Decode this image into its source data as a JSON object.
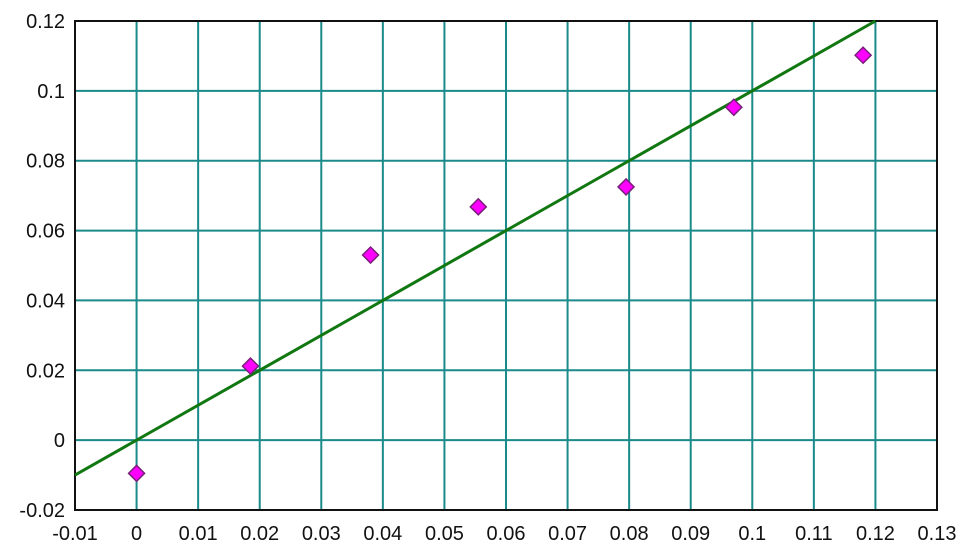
{
  "chart_data": {
    "type": "scatter",
    "title": "",
    "xlabel": "",
    "ylabel": "",
    "xlim": [
      -0.01,
      0.13
    ],
    "ylim": [
      -0.02,
      0.12
    ],
    "x_ticks": [
      -0.01,
      0,
      0.01,
      0.02,
      0.03,
      0.04,
      0.05,
      0.06,
      0.07,
      0.08,
      0.09,
      0.1,
      0.11,
      0.12,
      0.13
    ],
    "x_tick_labels": [
      "-0.01",
      "0",
      "0.01",
      "0.02",
      "0.03",
      "0.04",
      "0.05",
      "0.06",
      "0.07",
      "0.08",
      "0.09",
      "0.1",
      "0.11",
      "0.12",
      "0.13"
    ],
    "y_ticks": [
      -0.02,
      0,
      0.02,
      0.04,
      0.06,
      0.08,
      0.1,
      0.12
    ],
    "y_tick_labels": [
      "-0.02",
      "0",
      "0.02",
      "0.04",
      "0.06",
      "0.08",
      "0.1",
      "0.12"
    ],
    "grid": true,
    "legend": "none",
    "series": [
      {
        "type": "scatter",
        "marker": "diamond",
        "color": "#ff00ff",
        "edge_color": "#7a1f7a",
        "points": [
          {
            "x": 0.0,
            "y": -0.0095
          },
          {
            "x": 0.0185,
            "y": 0.0212
          },
          {
            "x": 0.038,
            "y": 0.053
          },
          {
            "x": 0.0555,
            "y": 0.0668
          },
          {
            "x": 0.0795,
            "y": 0.0725
          },
          {
            "x": 0.097,
            "y": 0.0953
          },
          {
            "x": 0.118,
            "y": 0.1102
          }
        ]
      },
      {
        "type": "line",
        "color": "#117711",
        "points": [
          {
            "x": -0.01,
            "y": -0.01
          },
          {
            "x": 0.12,
            "y": 0.12
          }
        ]
      }
    ],
    "colors": {
      "grid": "#1a8a8a",
      "axis_border": "#111111",
      "background": "#ffffff"
    }
  }
}
